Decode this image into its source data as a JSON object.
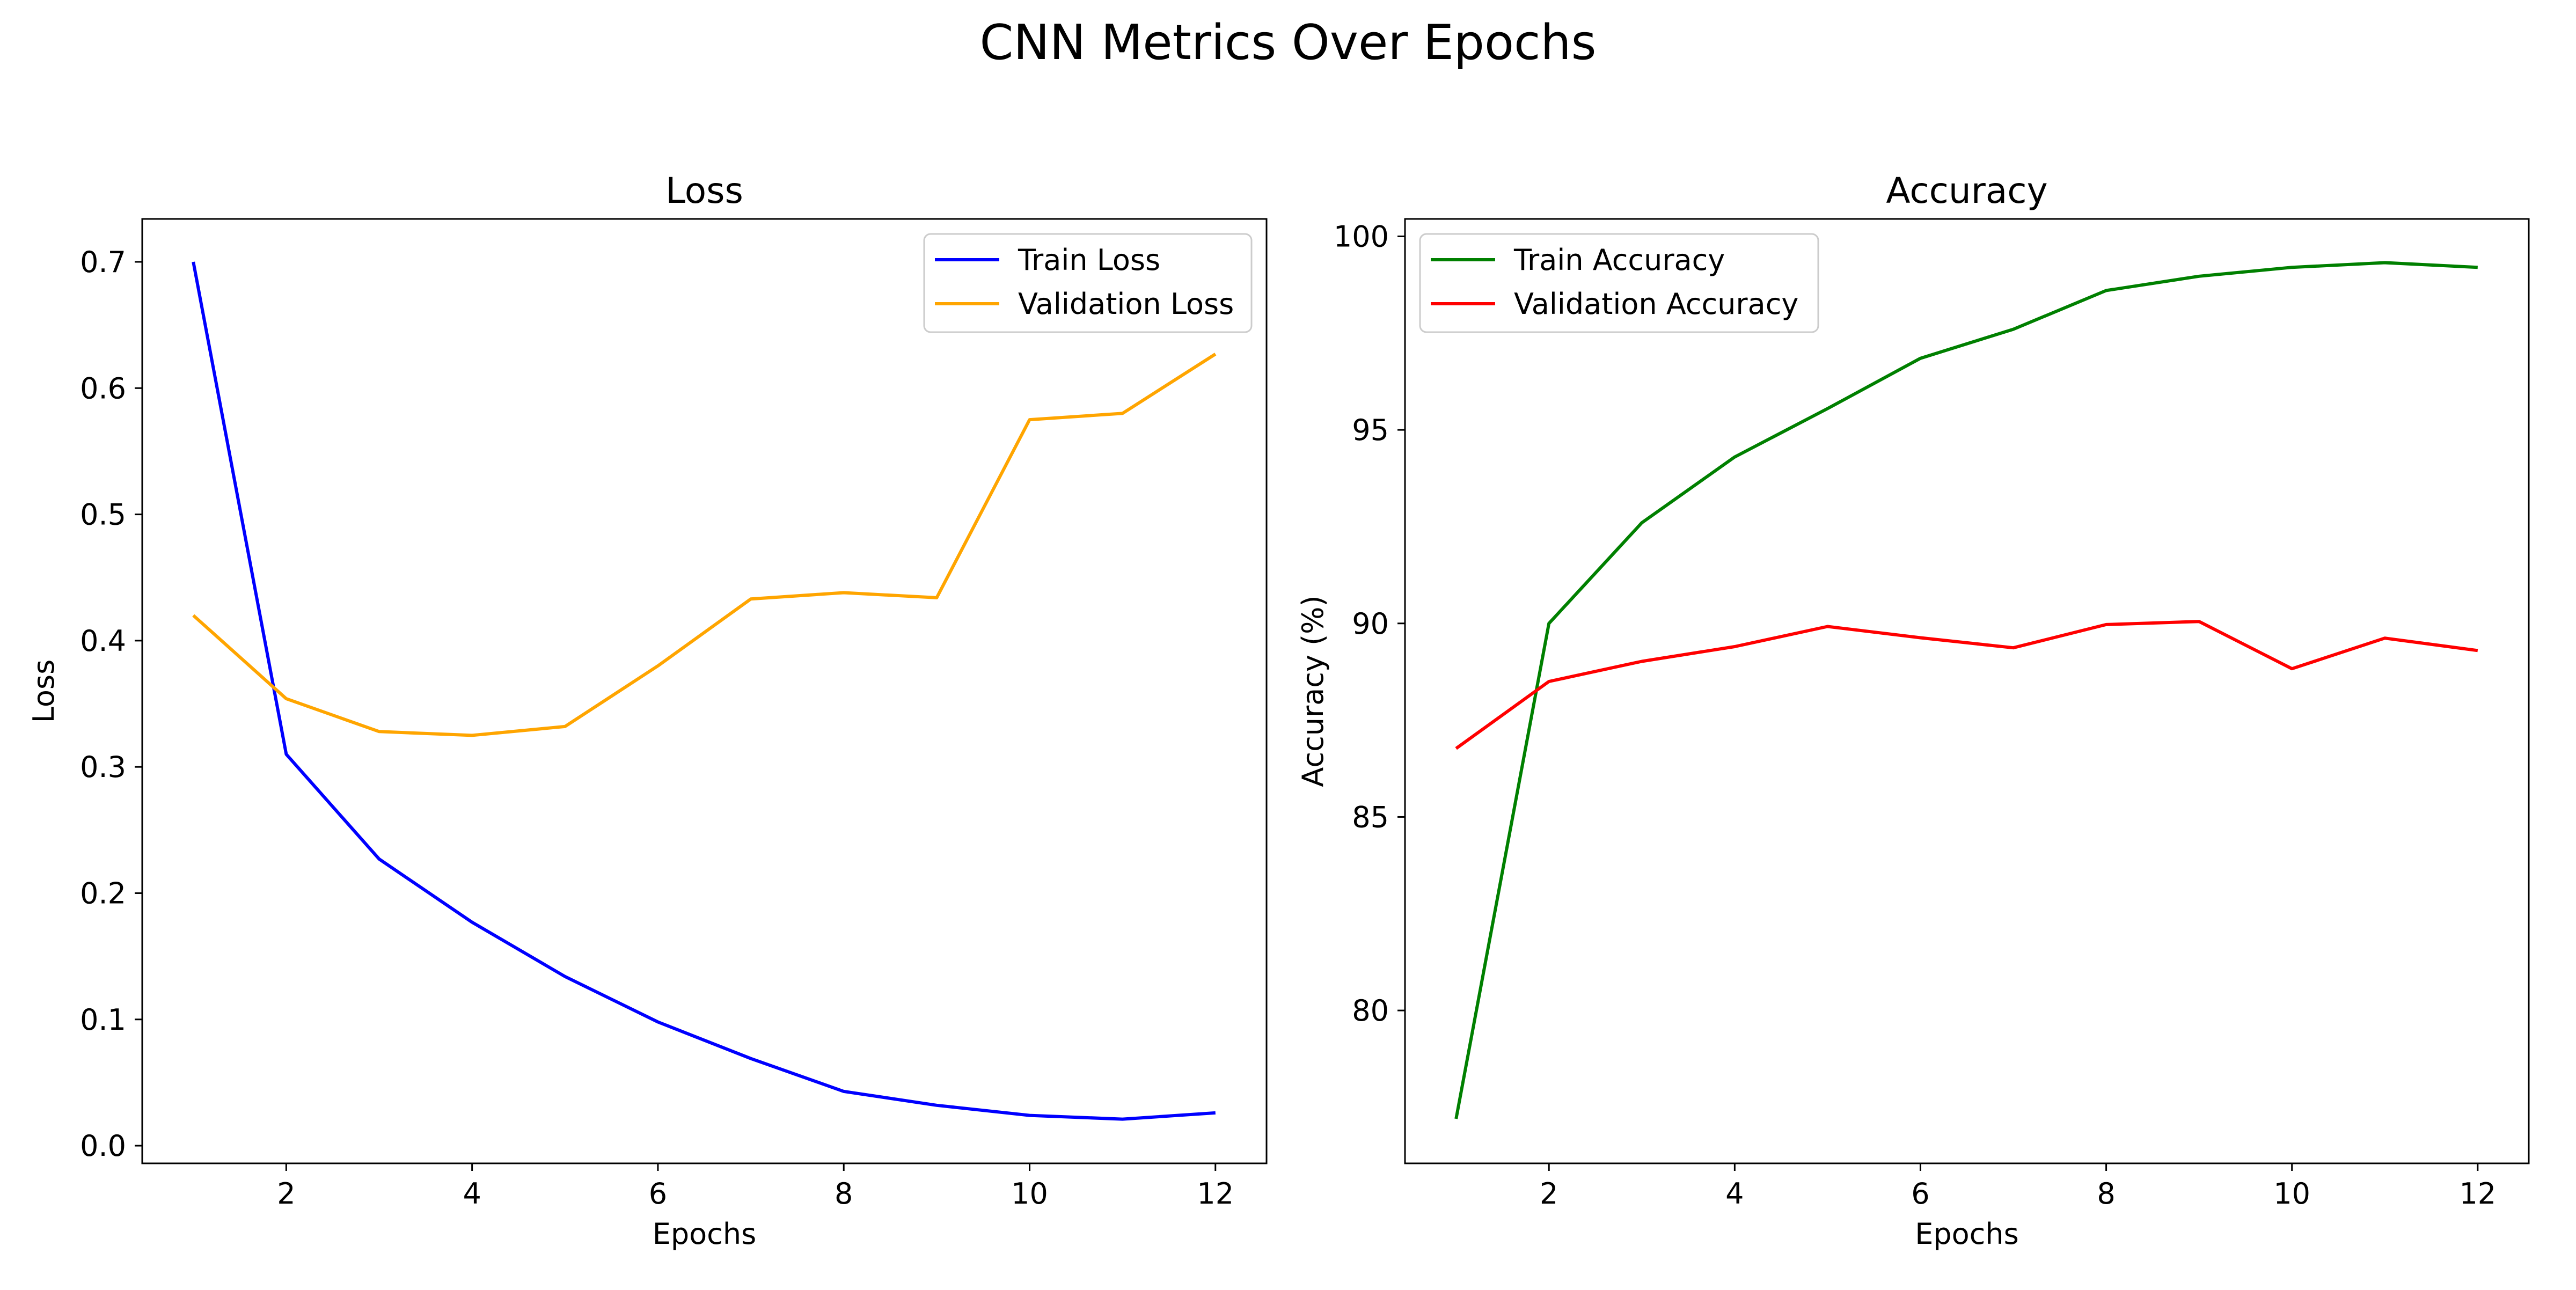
{
  "figure": {
    "suptitle": "CNN Metrics Over Epochs"
  },
  "chart_data": [
    {
      "type": "line",
      "title": "Loss",
      "xlabel": "Epochs",
      "ylabel": "Loss",
      "xlim": [
        0.45,
        12.55
      ],
      "ylim": [
        -0.014,
        0.734
      ],
      "xticks": [
        2,
        4,
        6,
        8,
        10,
        12
      ],
      "yticks": [
        0.0,
        0.1,
        0.2,
        0.3,
        0.4,
        0.5,
        0.6,
        0.7
      ],
      "ytick_decimals": 1,
      "grid": false,
      "legend": "upper-right",
      "x": [
        1,
        2,
        3,
        4,
        5,
        6,
        7,
        8,
        9,
        10,
        11,
        12
      ],
      "series": [
        {
          "name": "Train Loss",
          "color": "#0000ff",
          "values": [
            0.7,
            0.31,
            0.227,
            0.177,
            0.134,
            0.098,
            0.069,
            0.043,
            0.032,
            0.024,
            0.021,
            0.026
          ]
        },
        {
          "name": "Validation Loss",
          "color": "#ffa500",
          "values": [
            0.42,
            0.354,
            0.328,
            0.325,
            0.332,
            0.38,
            0.433,
            0.438,
            0.434,
            0.575,
            0.58,
            0.627
          ]
        }
      ]
    },
    {
      "type": "line",
      "title": "Accuracy",
      "xlabel": "Epochs",
      "ylabel": "Accuracy (%)",
      "xlim": [
        0.45,
        12.55
      ],
      "ylim": [
        76.05,
        100.45
      ],
      "xticks": [
        2,
        4,
        6,
        8,
        10,
        12
      ],
      "yticks": [
        80,
        85,
        90,
        95,
        100
      ],
      "ytick_decimals": 0,
      "grid": false,
      "legend": "upper-left",
      "x": [
        1,
        2,
        3,
        4,
        5,
        6,
        7,
        8,
        9,
        10,
        11,
        12
      ],
      "series": [
        {
          "name": "Train Accuracy",
          "color": "#008000",
          "values": [
            77.2,
            90.0,
            92.6,
            94.3,
            95.55,
            96.85,
            97.6,
            98.6,
            98.97,
            99.2,
            99.32,
            99.2
          ]
        },
        {
          "name": "Validation Accuracy",
          "color": "#ff0000",
          "values": [
            86.77,
            88.5,
            89.02,
            89.4,
            89.92,
            89.63,
            89.37,
            89.97,
            90.05,
            88.83,
            89.62,
            89.3
          ]
        }
      ]
    }
  ]
}
